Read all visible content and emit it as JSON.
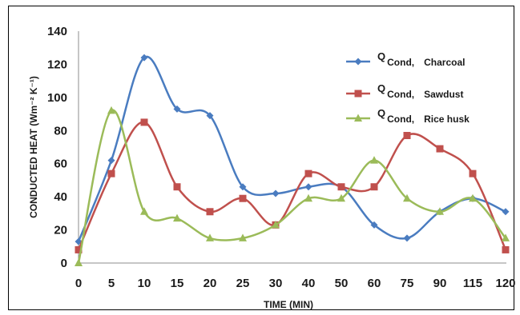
{
  "chart_data": {
    "type": "line",
    "xlabel": "TIME (MIN)",
    "ylabel": "CONDUCTED HEAT (Wm⁻² K⁻¹)",
    "categories": [
      "0",
      "5",
      "10",
      "15",
      "20",
      "25",
      "30",
      "40",
      "50",
      "60",
      "75",
      "90",
      "115",
      "120"
    ],
    "ylim": [
      0,
      140
    ],
    "yticks": [
      0,
      20,
      40,
      60,
      80,
      100,
      120,
      140
    ],
    "grid": false,
    "legend_position": "top-right",
    "smooth": true,
    "series": [
      {
        "name_q": "Q",
        "name_sub": "Cond,",
        "name_material": "Charcoal",
        "color": "#4a7cc0",
        "marker": "diamond",
        "values": [
          13,
          62,
          124,
          93,
          89,
          46,
          42,
          46,
          46,
          23,
          15,
          31,
          39,
          31
        ]
      },
      {
        "name_q": "Q",
        "name_sub": "Cond,",
        "name_material": "Sawdust",
        "color": "#c0504d",
        "marker": "square",
        "values": [
          8,
          54,
          85,
          46,
          31,
          39,
          23,
          54,
          46,
          46,
          77,
          69,
          54,
          8
        ]
      },
      {
        "name_q": "Q",
        "name_sub": "Cond,",
        "name_material": "Rice husk",
        "color": "#9bbb59",
        "marker": "triangle",
        "values": [
          0,
          92,
          31,
          27,
          15,
          15,
          23,
          39,
          39,
          62,
          39,
          31,
          39,
          15
        ]
      }
    ]
  }
}
